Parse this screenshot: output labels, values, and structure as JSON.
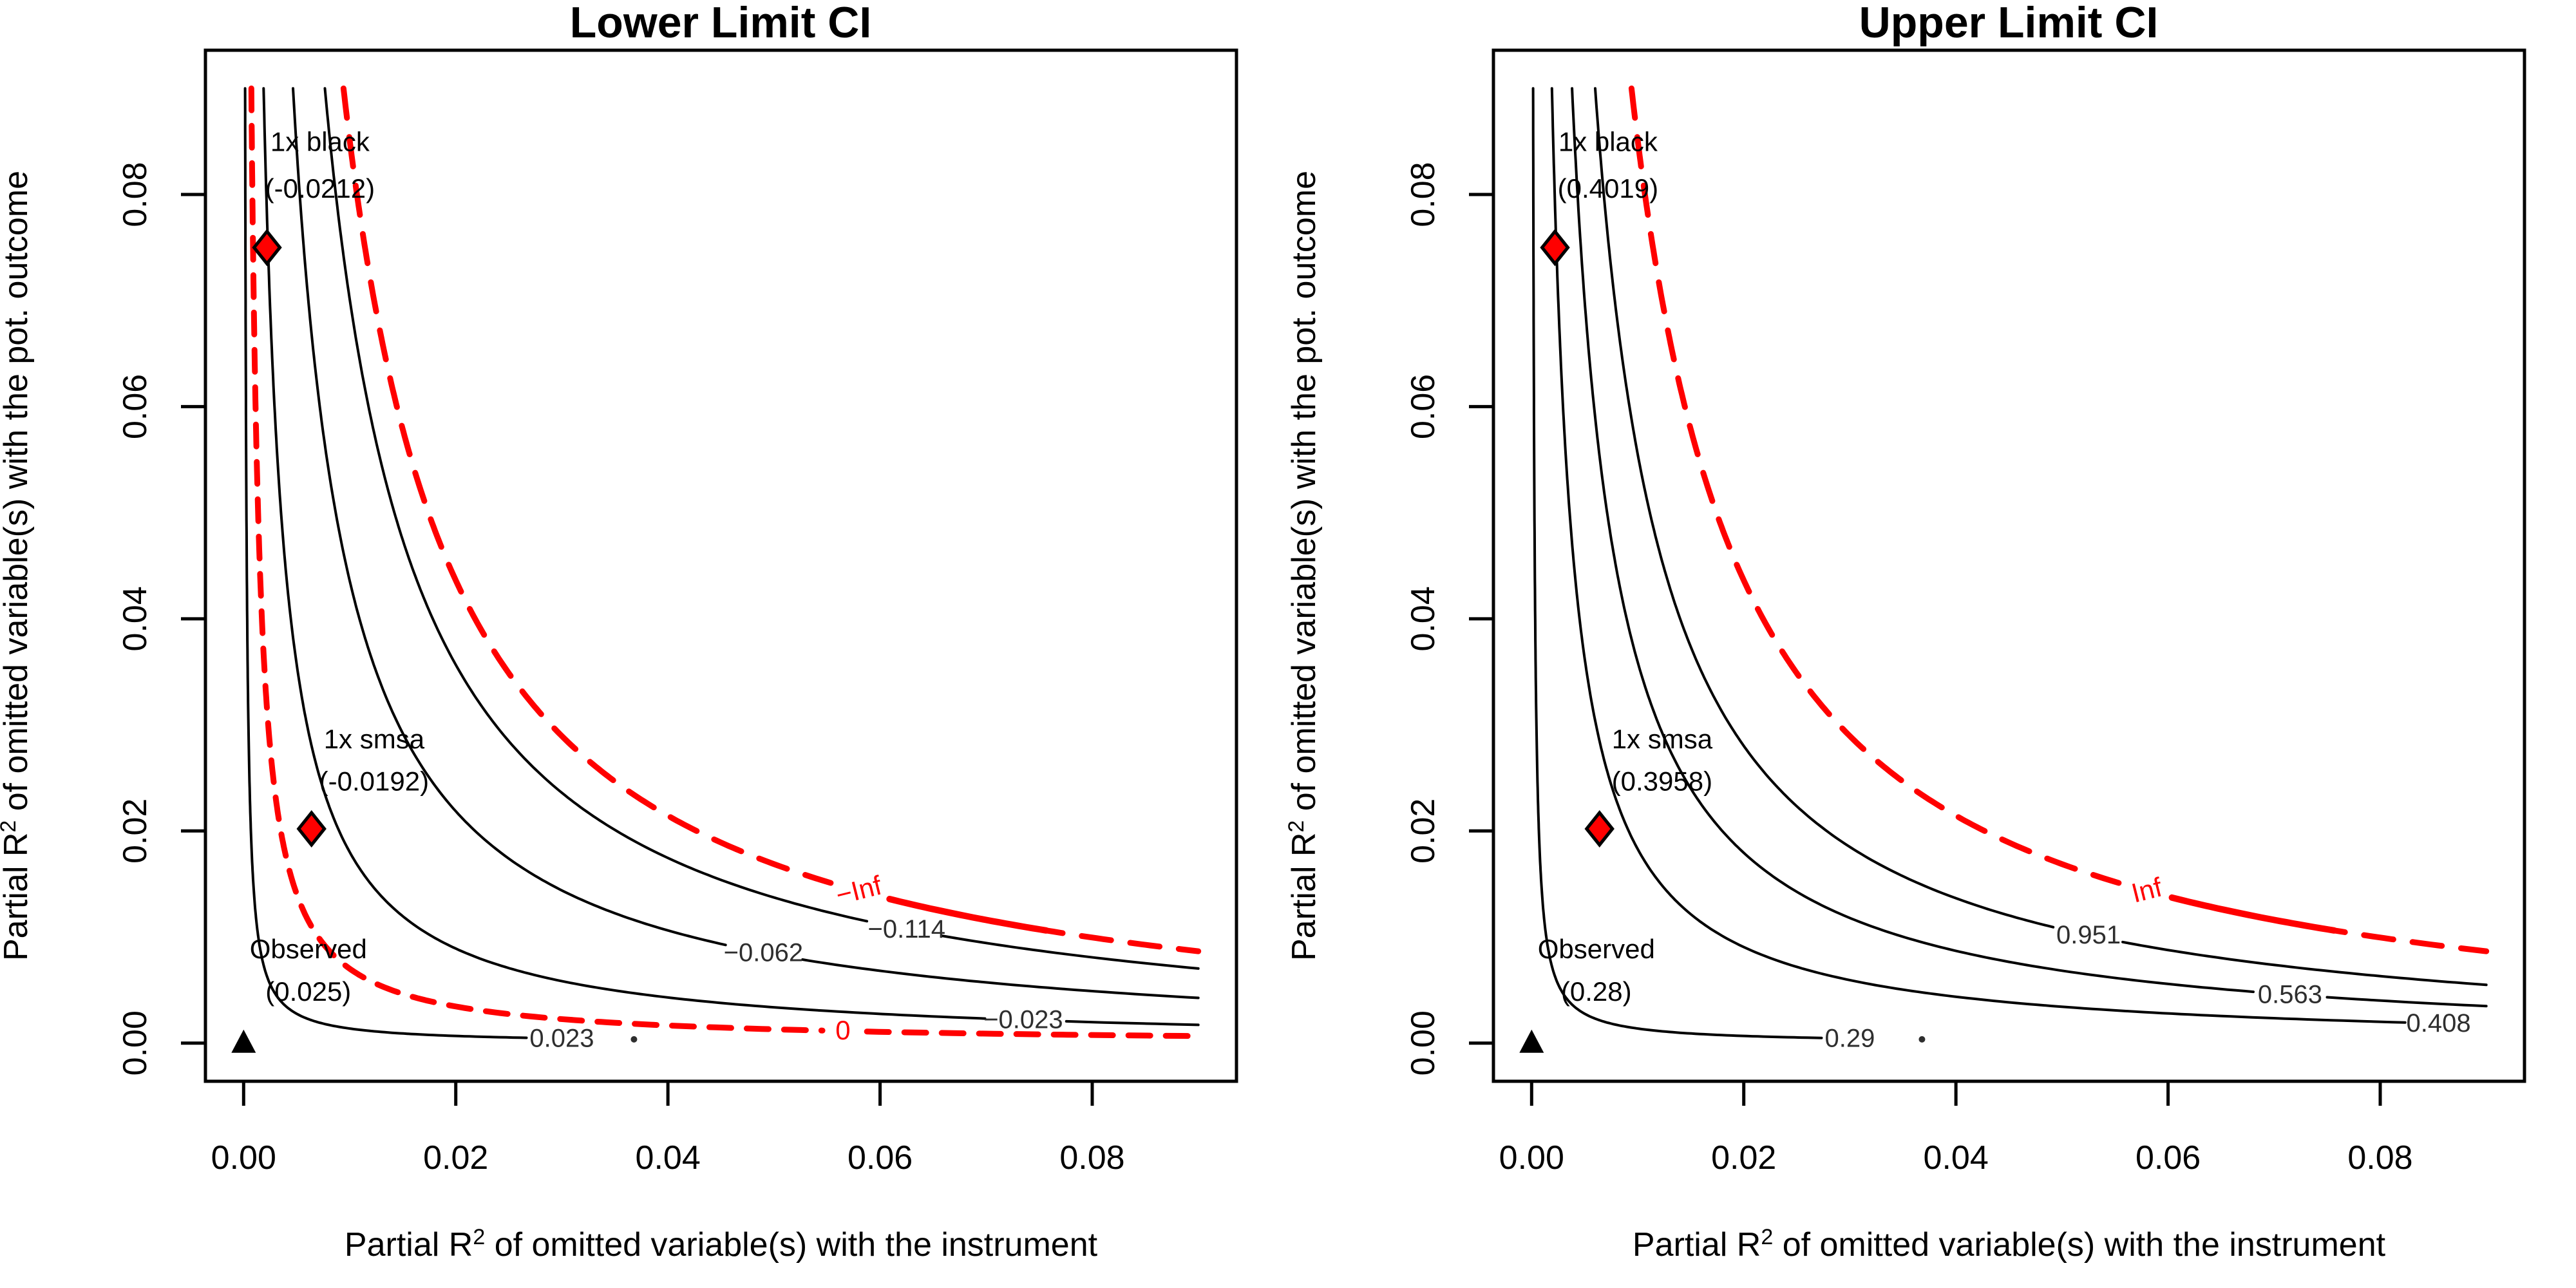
{
  "figure": {
    "background": "#ffffff",
    "black": "#000000",
    "red": "#ff0000",
    "contour_label_color": "#2e2e2e"
  },
  "axes": {
    "tick_values": [
      0,
      0.02,
      0.04,
      0.06,
      0.08
    ],
    "tick_labels": [
      "0.00",
      "0.02",
      "0.04",
      "0.06",
      "0.08"
    ],
    "data_min": 0,
    "data_max": 0.09,
    "pad": 0.0036,
    "x_title_pre": "Partial R",
    "x_title_sup": "2",
    "x_title_post": " of omitted variable(s) with the instrument",
    "y_title_pre": "Partial R",
    "y_title_sup": "2",
    "y_title_post": " of omitted variable(s) with the pot. outcome"
  },
  "chart_data": [
    {
      "type": "contour",
      "title": "Lower Limit CI",
      "xlabel": "Partial R2 of omitted variable(s) with the instrument",
      "ylabel": "Partial R2 of omitted variable(s) with the pot. outcome",
      "xlim": [
        0,
        0.09
      ],
      "ylim": [
        0,
        0.09
      ],
      "grid": false,
      "observed": {
        "lines": [
          "Observed",
          "(0.025)"
        ],
        "x": 0,
        "y": 0,
        "label_x": 0.0061,
        "label_y": [
          0.008,
          0.004
        ]
      },
      "benchmarks": [
        {
          "lines": [
            "1x black",
            "(-0.0212)"
          ],
          "x": 0.0022,
          "y": 0.075,
          "label_x": 0.0072,
          "label_y": [
            0.0841,
            0.0797
          ]
        },
        {
          "lines": [
            "1x smsa",
            "(-0.0192)"
          ],
          "x": 0.0064,
          "y": 0.0202,
          "label_x": 0.0123,
          "label_y": [
            0.0278,
            0.0238
          ]
        }
      ],
      "contours": [
        {
          "level": "0.023",
          "m2": 1.4e-05,
          "color": "black",
          "dashed": false,
          "label_x": 0.03,
          "end_after_label": true,
          "dot_x": 0.0368
        },
        {
          "level": "0",
          "m2": 7.2e-05,
          "color": "red",
          "dashed": true,
          "label_x": 0.0565
        },
        {
          "level": "−0.023",
          "m2": 0.000187,
          "color": "black",
          "dashed": false,
          "label_x": 0.0735
        },
        {
          "level": "−0.062",
          "m2": 0.000465,
          "color": "black",
          "dashed": false,
          "label_x": 0.049
        },
        {
          "level": "−0.114",
          "m2": 0.00077,
          "color": "black",
          "dashed": false,
          "label_x": 0.0625
        },
        {
          "level": "−Inf",
          "m2": 0.00095,
          "color": "red",
          "dashed": true,
          "label_x": 0.058,
          "rotate": -14,
          "solid_after_label": true
        }
      ]
    },
    {
      "type": "contour",
      "title": "Upper Limit CI",
      "xlabel": "Partial R2 of omitted variable(s) with the instrument",
      "ylabel": "Partial R2 of omitted variable(s) with the pot. outcome",
      "xlim": [
        0,
        0.09
      ],
      "ylim": [
        0,
        0.09
      ],
      "grid": false,
      "observed": {
        "lines": [
          "Observed",
          "(0.28)"
        ],
        "x": 0,
        "y": 0,
        "label_x": 0.0061,
        "label_y": [
          0.008,
          0.004
        ]
      },
      "benchmarks": [
        {
          "lines": [
            "1x black",
            "(0.4019)"
          ],
          "x": 0.0022,
          "y": 0.075,
          "label_x": 0.0072,
          "label_y": [
            0.0841,
            0.0797
          ]
        },
        {
          "lines": [
            "1x smsa",
            "(0.3958)"
          ],
          "x": 0.0064,
          "y": 0.0202,
          "label_x": 0.0123,
          "label_y": [
            0.0278,
            0.0238
          ]
        }
      ],
      "contours": [
        {
          "level": "0.29",
          "m2": 1.4e-05,
          "color": "black",
          "dashed": false,
          "label_x": 0.03,
          "end_after_label": true,
          "dot_x": 0.0368
        },
        {
          "level": "0.408",
          "m2": 0.00019,
          "color": "black",
          "dashed": false,
          "label_x": 0.0855,
          "end_after_label": true
        },
        {
          "level": "0.563",
          "m2": 0.00038,
          "color": "black",
          "dashed": false,
          "label_x": 0.0715
        },
        {
          "level": "0.951",
          "m2": 0.0006,
          "color": "black",
          "dashed": false,
          "label_x": 0.0525
        },
        {
          "level": "Inf",
          "m2": 0.00095,
          "color": "red",
          "dashed": true,
          "label_x": 0.058,
          "rotate": -14,
          "solid_after_label": true
        }
      ]
    }
  ]
}
